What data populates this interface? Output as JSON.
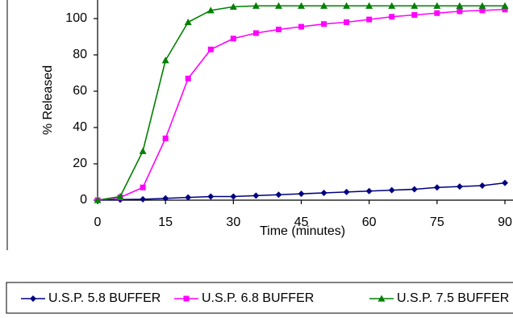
{
  "chart_data": {
    "type": "line",
    "title": "",
    "xlabel": "Time (minutes)",
    "ylabel": "% Released",
    "xlim": [
      0,
      90
    ],
    "ylim": [
      0,
      105
    ],
    "xticks": [
      0,
      15,
      30,
      45,
      60,
      75,
      90
    ],
    "yticks": [
      0,
      20,
      40,
      60,
      80,
      100
    ],
    "x_tick_labels": [
      "0",
      "15",
      "30",
      "45",
      "60",
      "75",
      "90"
    ],
    "y_tick_labels": [
      "0",
      "20",
      "40",
      "60",
      "80",
      "100"
    ],
    "grid": false,
    "legend_position": "bottom",
    "series": [
      {
        "name": "U.S.P. 5.8 BUFFER",
        "color": "#000080",
        "marker": "diamond",
        "x": [
          0,
          5,
          10,
          15,
          20,
          25,
          30,
          35,
          40,
          45,
          50,
          55,
          60,
          65,
          70,
          75,
          80,
          85,
          90
        ],
        "values": [
          0,
          0.3,
          0.5,
          1,
          1.5,
          2,
          2,
          2.5,
          3,
          3.5,
          4,
          4.5,
          5,
          5.5,
          6,
          7,
          7.5,
          8,
          9.5
        ]
      },
      {
        "name": "U.S.P. 6.8 BUFFER",
        "color": "#FF00FF",
        "marker": "square",
        "x": [
          0,
          5,
          10,
          15,
          20,
          25,
          30,
          35,
          40,
          45,
          50,
          55,
          60,
          65,
          70,
          75,
          80,
          85,
          90
        ],
        "values": [
          0,
          1.5,
          7,
          34,
          67,
          83,
          89,
          92,
          94,
          95.5,
          97,
          98,
          99.5,
          101,
          102,
          103,
          104,
          104.5,
          105
        ]
      },
      {
        "name": "U.S.P. 7.5 BUFFER",
        "color": "#008000",
        "marker": "triangle",
        "x": [
          0,
          5,
          10,
          15,
          20,
          25,
          30,
          35,
          40,
          45,
          50,
          55,
          60,
          65,
          70,
          75,
          80,
          85,
          90
        ],
        "values": [
          0,
          2,
          27,
          77,
          98,
          104.5,
          106.5,
          107,
          107,
          107,
          107,
          107,
          107,
          107,
          107,
          107,
          107,
          107,
          107
        ]
      }
    ]
  }
}
